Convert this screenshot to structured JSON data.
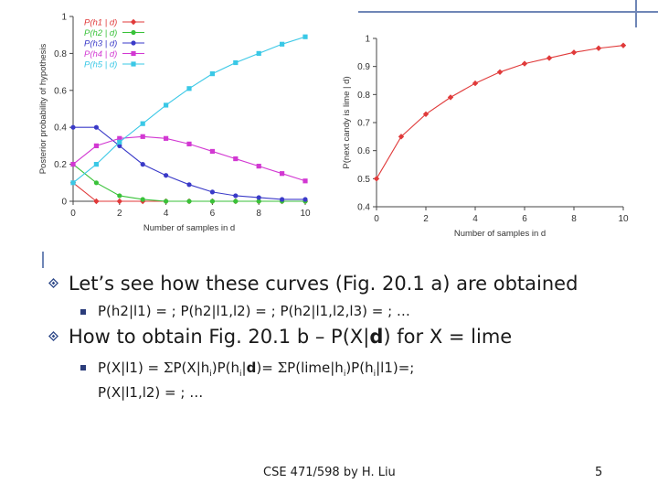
{
  "chart_data": [
    {
      "type": "line",
      "ylabel": "Posterior probability of hypothesis",
      "xlabel": "Number of samples in d",
      "xlim": [
        0,
        10
      ],
      "ylim": [
        0,
        1
      ],
      "x_ticks": [
        "0",
        "2",
        "4",
        "6",
        "8",
        "10"
      ],
      "y_ticks": [
        "0",
        "0.2",
        "0.4",
        "0.6",
        "0.8",
        "1"
      ],
      "legend_placement": "top-left",
      "x": [
        0,
        1,
        2,
        3,
        4,
        5,
        6,
        7,
        8,
        9,
        10
      ],
      "series": [
        {
          "name": "P(h1 | d)",
          "color": "#e03a3a",
          "marker": "diamond",
          "values": [
            0.1,
            0,
            0,
            0,
            0,
            0,
            0,
            0,
            0,
            0,
            0
          ]
        },
        {
          "name": "P(h2 | d)",
          "color": "#39c239",
          "marker": "circle",
          "values": [
            0.2,
            0.1,
            0.03,
            0.01,
            0,
            0,
            0,
            0,
            0,
            0,
            0
          ]
        },
        {
          "name": "P(h3 | d)",
          "color": "#3a3ac8",
          "marker": "circle",
          "values": [
            0.4,
            0.4,
            0.3,
            0.2,
            0.14,
            0.09,
            0.05,
            0.03,
            0.02,
            0.01,
            0.01
          ]
        },
        {
          "name": "P(h4 | d)",
          "color": "#d238d2",
          "marker": "square",
          "values": [
            0.2,
            0.3,
            0.34,
            0.35,
            0.34,
            0.31,
            0.27,
            0.23,
            0.19,
            0.15,
            0.11
          ]
        },
        {
          "name": "P(h5 | d)",
          "color": "#3ac8e6",
          "marker": "square",
          "values": [
            0.1,
            0.2,
            0.32,
            0.42,
            0.52,
            0.61,
            0.69,
            0.75,
            0.8,
            0.85,
            0.89
          ]
        }
      ]
    },
    {
      "type": "line",
      "ylabel": "P(next candy is lime | d)",
      "xlabel": "Number of samples in d",
      "xlim": [
        0,
        10
      ],
      "ylim": [
        0.4,
        1
      ],
      "x_ticks": [
        "0",
        "2",
        "4",
        "6",
        "8",
        "10"
      ],
      "y_ticks": [
        "0.4",
        "0.5",
        "0.6",
        "0.7",
        "0.8",
        "0.9",
        "1"
      ],
      "x": [
        0,
        1,
        2,
        3,
        4,
        5,
        6,
        7,
        8,
        9,
        10
      ],
      "series": [
        {
          "color": "#e03a3a",
          "marker": "diamond",
          "values": [
            0.5,
            0.65,
            0.73,
            0.79,
            0.84,
            0.88,
            0.91,
            0.93,
            0.95,
            0.965,
            0.975
          ]
        }
      ]
    }
  ],
  "bullets": {
    "b1": "Let’s see how these curves (Fig. 20.1 a) are obtained",
    "b1_sub": "P(h2|l1) = ; P(h2|l1,l2) = ; P(h2|l1,l2,l3) = ; …",
    "b2_a": "How to obtain Fig. 20.1 b – P(X|",
    "b2_bold": "d",
    "b2_b": ") for X = lime",
    "b2_sub_l1_a": "P(X|l1) = ",
    "b2_sub_sigma1": "Σ",
    "b2_sub_l1_b": "P(X|h",
    "b2_sub_i1": "i",
    "b2_sub_l1_c": ")P(h",
    "b2_sub_i2": "i",
    "b2_sub_l1_d": "|",
    "b2_sub_bold": "d",
    "b2_sub_l1_e": ")= ",
    "b2_sub_sigma2": "Σ",
    "b2_sub_l1_f": "P(lime|h",
    "b2_sub_i3": "i",
    "b2_sub_l1_g": ")P(h",
    "b2_sub_i4": "i",
    "b2_sub_l1_h": "|l1)=;",
    "b2_sub_line2": "P(X|l1,l2) = ; …"
  },
  "footer": {
    "credit": "CSE 471/598 by H. Liu",
    "page_number": "5"
  },
  "colors": {
    "accent": "#6f86b6",
    "bullet_diamond": "#2f4a8a",
    "axis": "#444444",
    "grid_bg": "#ffffff"
  }
}
